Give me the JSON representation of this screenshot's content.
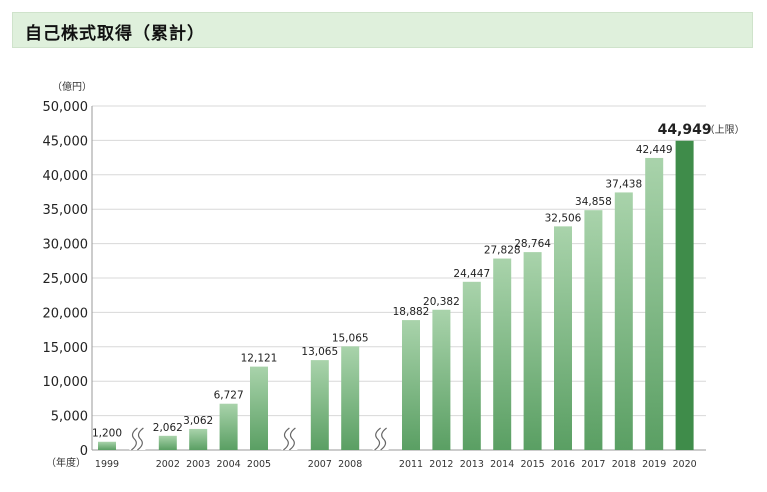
{
  "header": {
    "title": "自己株式取得（累計）"
  },
  "colors": {
    "bar_top": "#a9d3ab",
    "bar_bottom": "#5a9f63",
    "highlight": "#3f8c4a",
    "grid": "#d8d8d8",
    "break": "#666666"
  },
  "chart_data": {
    "type": "bar",
    "title": "自己株式取得（累計）",
    "ylabel": "（億円）",
    "xlabel": "（年度）",
    "ylim": [
      0,
      50000
    ],
    "yticks": [
      "0",
      "5,000",
      "10,000",
      "15,000",
      "20,000",
      "25,000",
      "30,000",
      "35,000",
      "40,000",
      "45,000",
      "50,000"
    ],
    "grid": true,
    "categories": [
      "1999",
      "2002",
      "2003",
      "2004",
      "2005",
      "2007",
      "2008",
      "2011",
      "2012",
      "2013",
      "2014",
      "2015",
      "2016",
      "2017",
      "2018",
      "2019",
      "2020"
    ],
    "values": [
      1200,
      2062,
      3062,
      6727,
      12121,
      13065,
      15065,
      18882,
      20382,
      24447,
      27828,
      28764,
      32506,
      34858,
      37438,
      42449,
      44949
    ],
    "value_labels": [
      "1,200",
      "2,062",
      "3,062",
      "6,727",
      "12,121",
      "13,065",
      "15,065",
      "18,882",
      "20,382",
      "24,447",
      "27,828",
      "28,764",
      "32,506",
      "34,858",
      "37,438",
      "42,449",
      "44,949"
    ],
    "highlight_index": 16,
    "highlight_note": "（上限）",
    "axis_breaks_after": [
      "1999",
      "2005",
      "2008"
    ]
  }
}
